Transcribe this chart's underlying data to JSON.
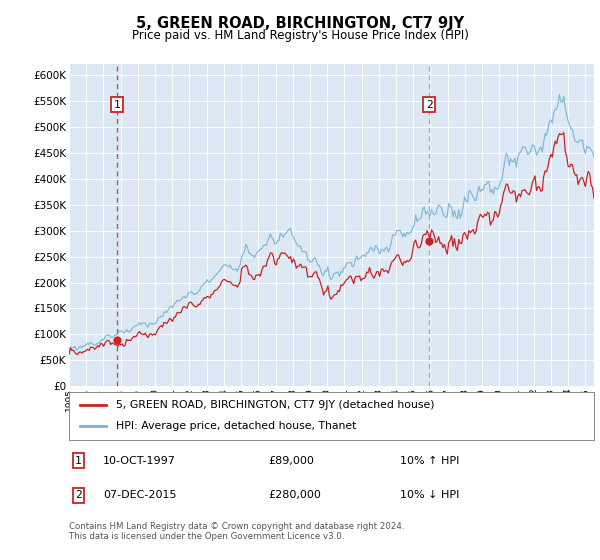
{
  "title": "5, GREEN ROAD, BIRCHINGTON, CT7 9JY",
  "subtitle": "Price paid vs. HM Land Registry's House Price Index (HPI)",
  "legend_line1": "5, GREEN ROAD, BIRCHINGTON, CT7 9JY (detached house)",
  "legend_line2": "HPI: Average price, detached house, Thanet",
  "annotation1_date": "10-OCT-1997",
  "annotation1_price": "£89,000",
  "annotation1_hpi": "10% ↑ HPI",
  "annotation2_date": "07-DEC-2015",
  "annotation2_price": "£280,000",
  "annotation2_hpi": "10% ↓ HPI",
  "footer": "Contains HM Land Registry data © Crown copyright and database right 2024.\nThis data is licensed under the Open Government Licence v3.0.",
  "sale1_year": 1997.78,
  "sale1_price": 89000,
  "sale2_year": 2015.92,
  "sale2_price": 280000,
  "xmin": 1995,
  "xmax": 2025.5,
  "ylim": [
    0,
    620000
  ],
  "yticks": [
    0,
    50000,
    100000,
    150000,
    200000,
    250000,
    300000,
    350000,
    400000,
    450000,
    500000,
    550000,
    600000
  ],
  "hpi_color": "#7ab3d4",
  "price_color": "#cc2222",
  "vline1_color": "#cc2222",
  "vline2_color": "#aaaaaa",
  "bg_color": "#dce9f5",
  "grid_color": "#ffffff",
  "title_fontsize": 11,
  "subtitle_fontsize": 9,
  "annot_box_color": "#cc2222"
}
